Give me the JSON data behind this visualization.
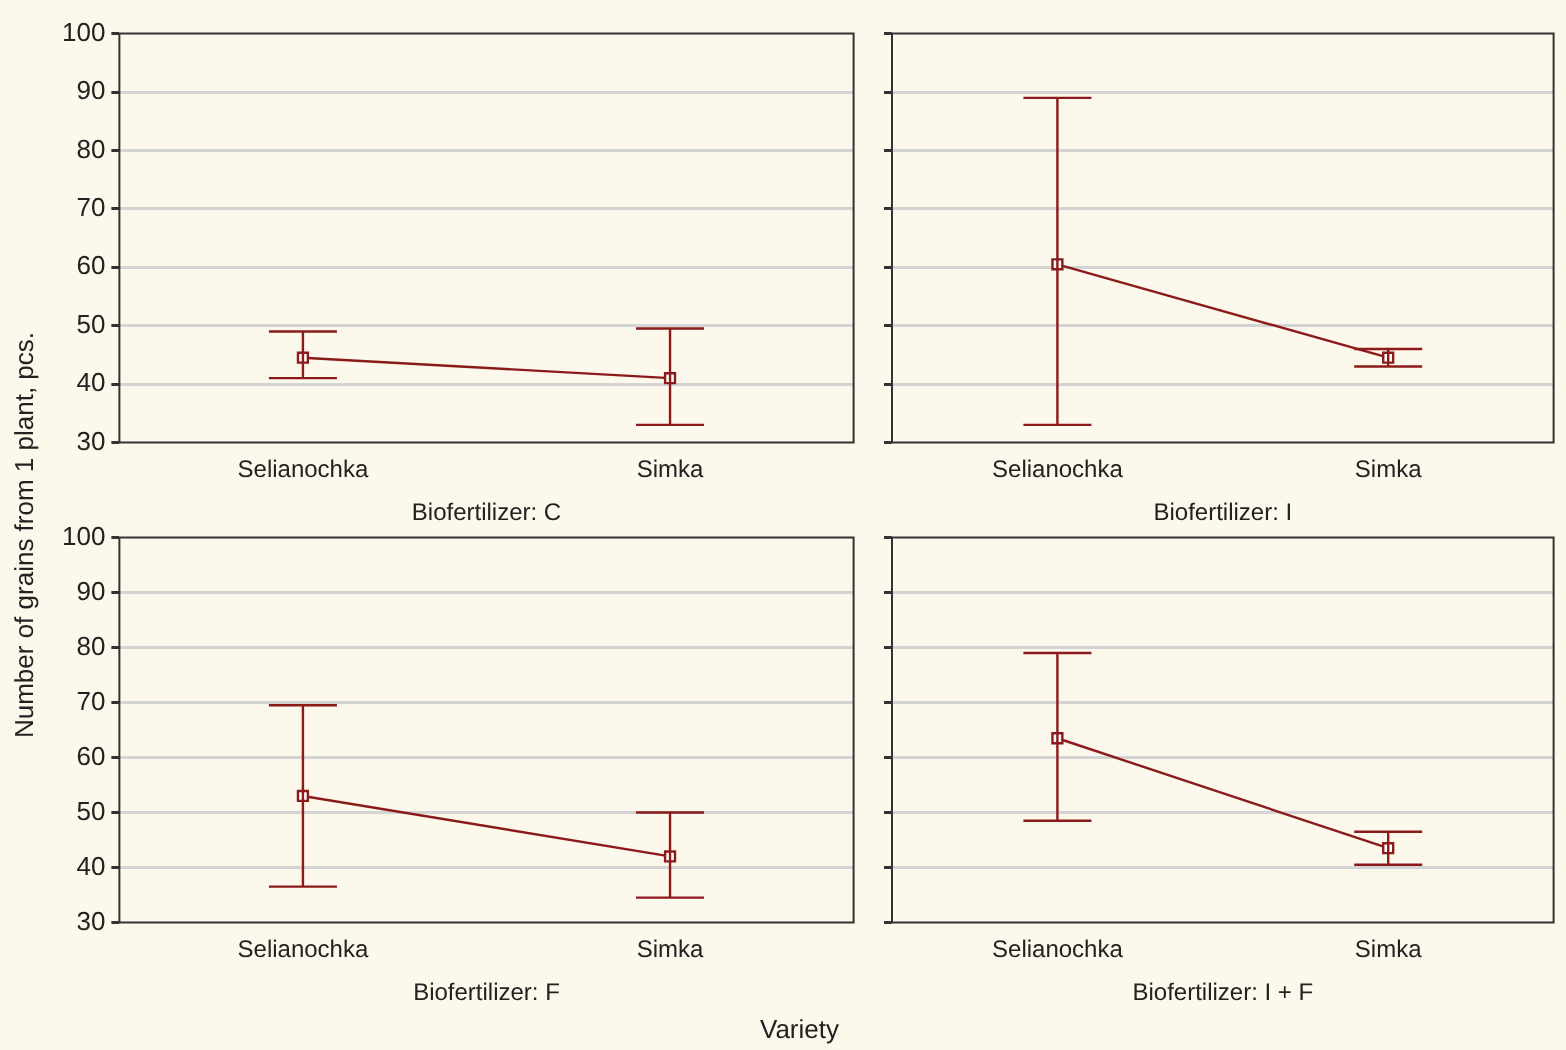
{
  "chart_data": [
    {
      "type": "line",
      "xlabel": "Biofertilizer: C",
      "ylabel": "Number of grains from 1 plant, pcs.",
      "categories": [
        "Selianochka",
        "Simka"
      ],
      "series": [
        {
          "color": "#8b1a1a",
          "values": [
            44.5,
            41
          ],
          "errors": [
            [
              41,
              49
            ],
            [
              33,
              49.5
            ]
          ]
        }
      ],
      "ylim": [
        30,
        100
      ],
      "yticks": [
        30,
        40,
        50,
        60,
        70,
        80,
        90,
        100
      ],
      "grid": "y",
      "marker": "square",
      "line_style": "solid"
    },
    {
      "type": "line",
      "xlabel": "Biofertilizer: I",
      "categories": [
        "Selianochka",
        "Simka"
      ],
      "series": [
        {
          "color": "#8b1a1a",
          "values": [
            60.5,
            44.5
          ],
          "errors": [
            [
              33,
              89
            ],
            [
              43,
              46
            ]
          ]
        }
      ],
      "ylim": [
        30,
        100
      ],
      "yticks": [
        30,
        40,
        50,
        60,
        70,
        80,
        90,
        100
      ],
      "grid": "y",
      "marker": "square",
      "line_style": "solid",
      "tick_labels": "x"
    },
    {
      "type": "line",
      "xlabel": "Biofertilizer: F",
      "categories": [
        "Selianochka",
        "Simka"
      ],
      "series": [
        {
          "color": "#8b1a1a",
          "values": [
            53,
            42
          ],
          "errors": [
            [
              36.5,
              69.5
            ],
            [
              34.5,
              50
            ]
          ]
        }
      ],
      "ylim": [
        30,
        100
      ],
      "yticks": [
        30,
        40,
        50,
        60,
        70,
        80,
        90,
        100
      ],
      "grid": "y",
      "marker": "square",
      "line_style": "solid",
      "annotations": [
        "Variety"
      ]
    },
    {
      "type": "line",
      "xlabel": "Biofertilizer: I + F",
      "categories": [
        "Selianochka",
        "Simka"
      ],
      "series": [
        {
          "color": "#8b1a1a",
          "values": [
            63.5,
            43.5
          ],
          "errors": [
            [
              48.5,
              79
            ],
            [
              40.5,
              46.5
            ]
          ]
        }
      ],
      "ylim": [
        30,
        100
      ],
      "yticks": [
        30,
        40,
        50,
        60,
        70,
        80,
        90,
        100
      ],
      "grid": "y",
      "marker": "square",
      "line_style": "solid",
      "tick_labels": "x"
    }
  ]
}
